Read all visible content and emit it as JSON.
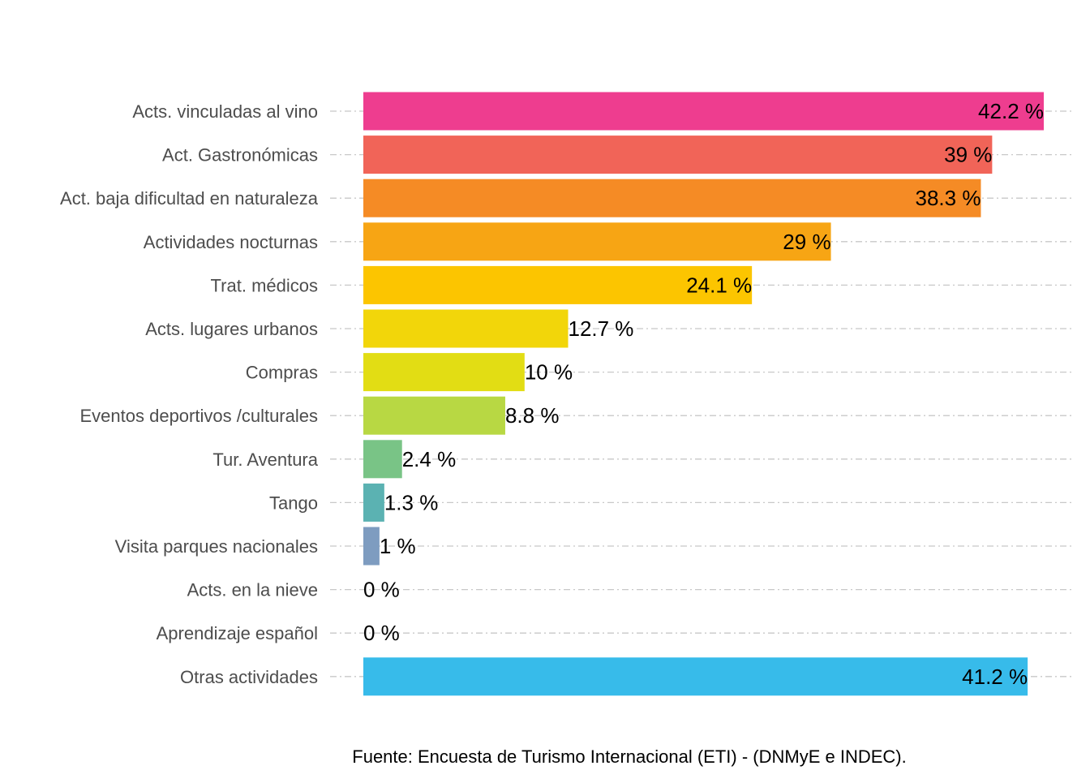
{
  "caption": "Fuente: Encuesta de Turismo Internacional (ETI) - (DNMyE e INDEC).",
  "chart_data": {
    "type": "bar",
    "orientation": "horizontal",
    "title": "",
    "xlabel": "",
    "ylabel": "",
    "grid": "dashed horizontal lines at each category",
    "value_suffix": " %",
    "categories": [
      "Acts. vinculadas al vino",
      "Act. Gastronómicas",
      "Act. baja dificultad en naturaleza",
      "Actividades nocturnas",
      "Trat. médicos",
      "Acts. lugares urbanos",
      "Compras",
      "Eventos deportivos /culturales",
      "Tur. Aventura",
      "Tango",
      "Visita parques nacionales",
      "Acts. en la nieve",
      "Aprendizaje español",
      "Otras actividades"
    ],
    "values": [
      42.2,
      39,
      38.3,
      29,
      24.1,
      12.7,
      10,
      8.8,
      2.4,
      1.3,
      1,
      0,
      0,
      41.2
    ],
    "labels": [
      "42.2 %",
      "39 %",
      "38.3 %",
      "29 %",
      "24.1 %",
      "12.7 %",
      "10 %",
      "8.8 %",
      "2.4 %",
      "1.3 %",
      "1 %",
      "0 %",
      "0 %",
      "41.2 %"
    ],
    "colors": [
      "#EE3D8F",
      "#F16458",
      "#F58B25",
      "#F7A514",
      "#FCC500",
      "#F2D60A",
      "#E2DD14",
      "#B8D843",
      "#79C486",
      "#5BB2B2",
      "#7E9CC0",
      "#7E9CC0",
      "#7E9CC0",
      "#37BBEA"
    ],
    "xlim": [
      0,
      42.2
    ]
  }
}
